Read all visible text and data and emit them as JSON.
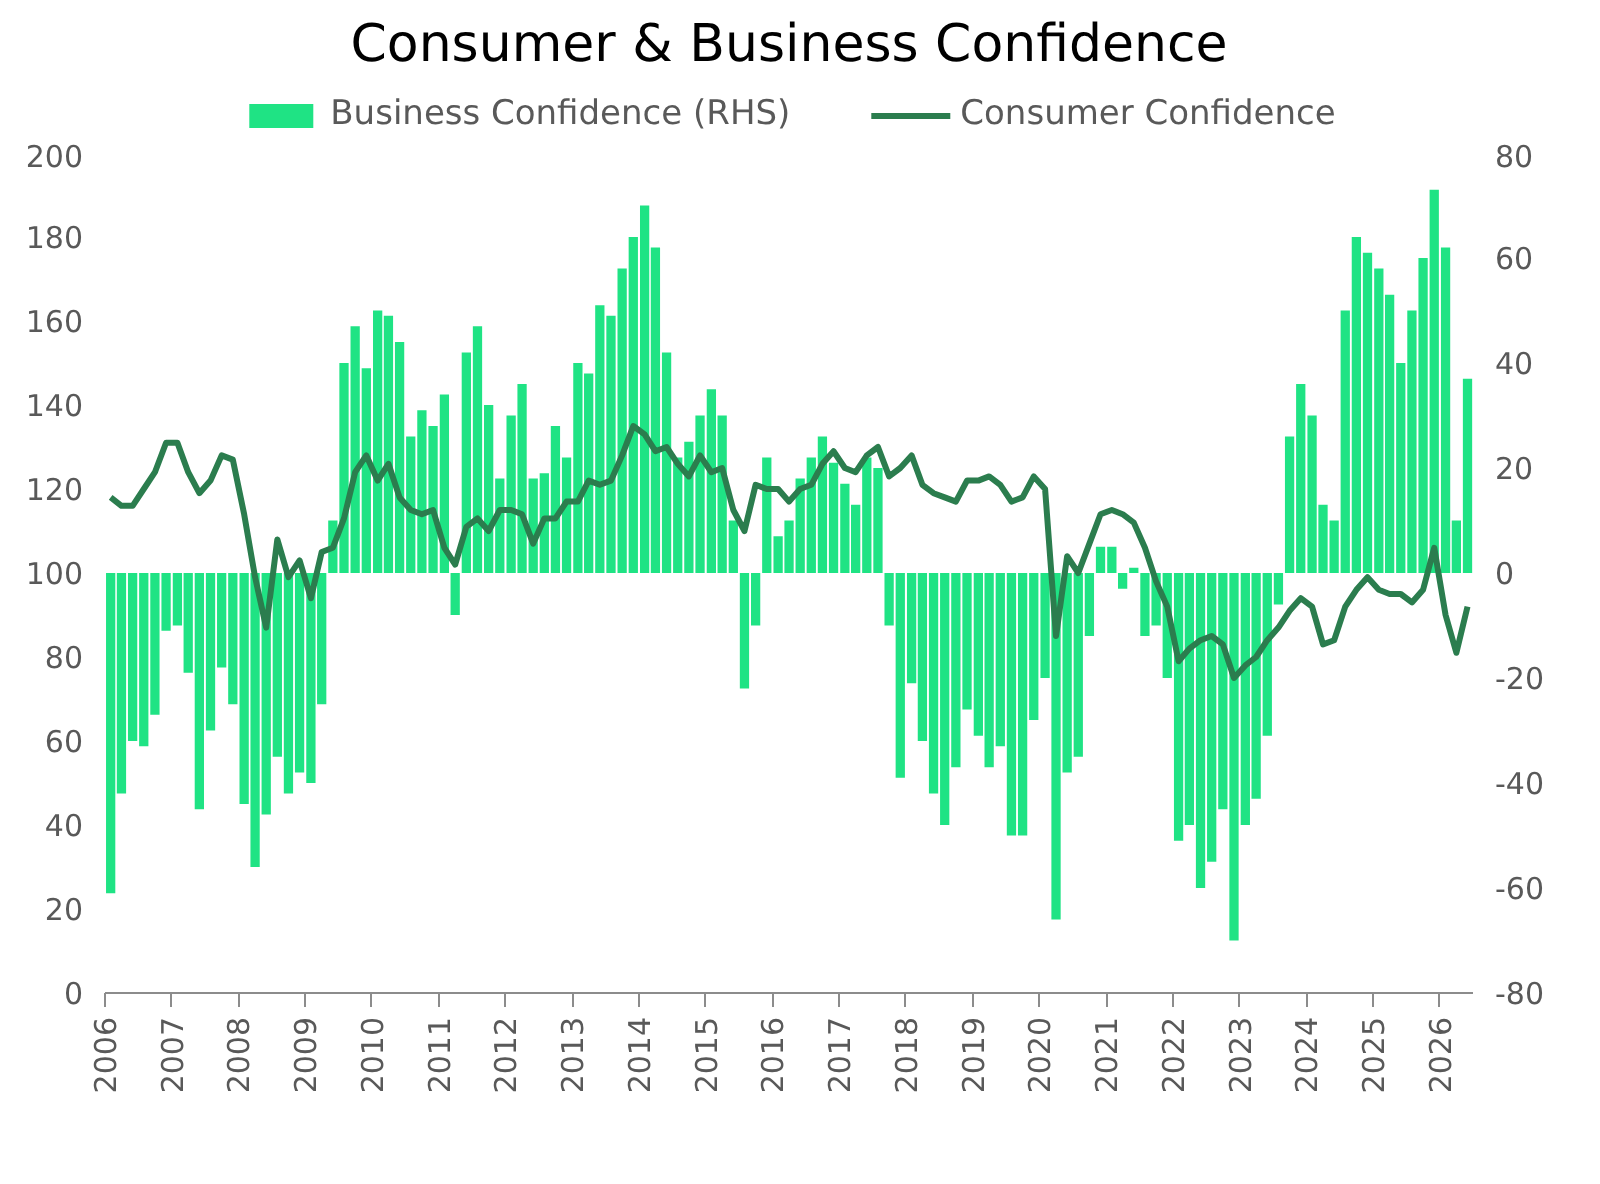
{
  "chart_data": {
    "type": "bar",
    "title": "Consumer & Business Confidence",
    "x": [
      "2006-02",
      "2006-04",
      "2006-06",
      "2006-08",
      "2006-10",
      "2006-12",
      "2007-02",
      "2007-04",
      "2007-06",
      "2007-08",
      "2007-10",
      "2007-12",
      "2008-02",
      "2008-04",
      "2008-06",
      "2008-08",
      "2008-10",
      "2008-12",
      "2009-02",
      "2009-04",
      "2009-06",
      "2009-08",
      "2009-10",
      "2009-12",
      "2010-02",
      "2010-04",
      "2010-06",
      "2010-08",
      "2010-10",
      "2010-12",
      "2011-02",
      "2011-04",
      "2011-06",
      "2011-08",
      "2011-10",
      "2011-12",
      "2012-02",
      "2012-04",
      "2012-06",
      "2012-08",
      "2012-10",
      "2012-12",
      "2013-02",
      "2013-04",
      "2013-06",
      "2013-08",
      "2013-10",
      "2013-12",
      "2014-02",
      "2014-04",
      "2014-06",
      "2014-08",
      "2014-10",
      "2014-12",
      "2015-02",
      "2015-04",
      "2015-06",
      "2015-08",
      "2015-10",
      "2015-12",
      "2016-02",
      "2016-04",
      "2016-06",
      "2016-08",
      "2016-10",
      "2016-12",
      "2017-02",
      "2017-04",
      "2017-06",
      "2017-08",
      "2017-10",
      "2017-12",
      "2018-02",
      "2018-04",
      "2018-06",
      "2018-08",
      "2018-10",
      "2018-12",
      "2019-02",
      "2019-04",
      "2019-06",
      "2019-08",
      "2019-10",
      "2019-12",
      "2020-02",
      "2020-04",
      "2020-06",
      "2020-08",
      "2020-10",
      "2020-12",
      "2021-02",
      "2021-04",
      "2021-06",
      "2021-08",
      "2021-10",
      "2021-12",
      "2022-02",
      "2022-04",
      "2022-06",
      "2022-08",
      "2022-10",
      "2022-12",
      "2023-02",
      "2023-04",
      "2023-06",
      "2023-08",
      "2023-10",
      "2023-12",
      "2024-02",
      "2024-04",
      "2024-06",
      "2024-08",
      "2024-10",
      "2024-12",
      "2025-02",
      "2025-04",
      "2025-06",
      "2025-08",
      "2025-10",
      "2025-12",
      "2026-02",
      "2026-04",
      "2026-06"
    ],
    "series": [
      {
        "name": "Business Confidence (RHS)",
        "axis": "y2",
        "color": "#1fe384",
        "values": [
          -61,
          -42,
          -32,
          -33,
          -27,
          -11,
          -10,
          -19,
          -45,
          -30,
          -18,
          -25,
          -44,
          -56,
          -46,
          -35,
          -42,
          -38,
          -40,
          -25,
          10,
          40,
          47,
          39,
          50,
          49,
          44,
          26,
          31,
          28,
          34,
          -8,
          42,
          47,
          32,
          18,
          30,
          36,
          18,
          19,
          28,
          22,
          40,
          38,
          51,
          49,
          58,
          64,
          70,
          62,
          42,
          22,
          25,
          30,
          35,
          30,
          10,
          -22,
          -10,
          22,
          7,
          10,
          18,
          22,
          26,
          21,
          17,
          13,
          22,
          20,
          -10,
          -39,
          -21,
          -32,
          -42,
          -48,
          -37,
          -26,
          -31,
          -37,
          -33,
          -50,
          -50,
          -28,
          -20,
          -66,
          -38,
          -35,
          -12,
          5,
          5,
          -3,
          1,
          -12,
          -10,
          -20,
          -51,
          -48,
          -60,
          -55,
          -45,
          -70,
          -48,
          -43,
          -31,
          -6,
          26,
          36,
          30,
          13,
          10,
          50,
          64,
          61,
          58,
          53,
          40,
          50,
          60,
          73,
          62,
          10,
          37
        ]
      },
      {
        "name": "Consumer Confidence",
        "type": "line",
        "color": "#2b7d4e",
        "values": [
          118,
          116,
          116,
          120,
          124,
          131,
          131,
          124,
          119,
          122,
          128,
          127,
          114,
          99,
          87,
          108,
          99,
          103,
          94,
          105,
          106,
          113,
          124,
          128,
          122,
          126,
          118,
          115,
          114,
          115,
          106,
          102,
          111,
          113,
          110,
          115,
          115,
          114,
          107,
          113,
          113,
          117,
          117,
          122,
          121,
          122,
          128,
          135,
          133,
          129,
          130,
          126,
          123,
          128,
          124,
          125,
          115,
          110,
          121,
          120,
          120,
          117,
          120,
          121,
          126,
          129,
          125,
          124,
          128,
          130,
          123,
          125,
          128,
          121,
          119,
          118,
          117,
          122,
          122,
          123,
          121,
          117,
          118,
          123,
          120,
          85,
          104,
          100,
          107,
          114,
          115,
          114,
          112,
          106,
          98,
          92,
          79,
          82,
          84,
          85,
          83,
          75,
          78,
          80,
          84,
          87,
          91,
          94,
          92,
          83,
          84,
          92,
          96,
          99,
          96,
          95,
          95,
          93,
          96,
          106,
          90,
          81,
          92
        ]
      }
    ],
    "xlim": [
      "2006",
      "2026-07"
    ],
    "xticks": [
      "2006",
      "2007",
      "2008",
      "2009",
      "2010",
      "2011",
      "2012",
      "2013",
      "2014",
      "2015",
      "2016",
      "2017",
      "2018",
      "2019",
      "2020",
      "2021",
      "2022",
      "2023",
      "2024",
      "2025",
      "2026"
    ],
    "ylim": [
      0,
      200
    ],
    "yticks": [
      0,
      20,
      40,
      60,
      80,
      100,
      120,
      140,
      160,
      180,
      200
    ],
    "y2lim": [
      -80,
      80
    ],
    "y2ticks": [
      -80,
      -60,
      -40,
      -20,
      0,
      20,
      40,
      60,
      80
    ],
    "legend": "top",
    "grid": false
  }
}
